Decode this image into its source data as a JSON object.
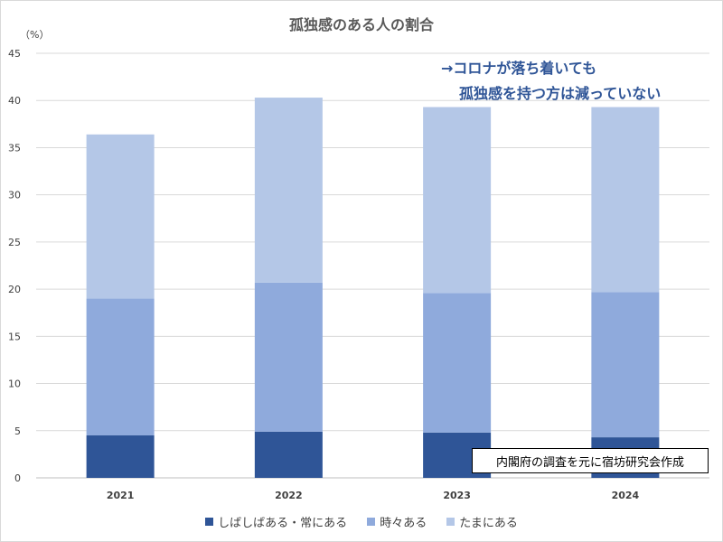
{
  "chart_data": {
    "type": "bar",
    "stacked": true,
    "title": "孤独感のある人の割合",
    "unit_label": "（%）",
    "categories": [
      "2021",
      "2022",
      "2023",
      "2024"
    ],
    "series": [
      {
        "name": "しばしばある・常にある",
        "values": [
          4.5,
          4.9,
          4.8,
          4.3
        ],
        "color": "#2f5597"
      },
      {
        "name": "時々ある",
        "values": [
          14.5,
          15.8,
          14.8,
          15.4
        ],
        "color": "#8faadc"
      },
      {
        "name": "たまにある",
        "values": [
          17.4,
          19.6,
          19.7,
          19.6
        ],
        "color": "#b4c7e7"
      }
    ],
    "ylim": [
      0,
      45
    ],
    "yticks": [
      0,
      5,
      10,
      15,
      20,
      25,
      30,
      35,
      40,
      45
    ],
    "grid": true,
    "legend_position": "bottom"
  },
  "annotation": {
    "line1": "→コロナが落ち着いても",
    "line2": "孤独感を持つ方は減っていない"
  },
  "source_note": "内閣府の調査を元に宿坊研究会作成"
}
